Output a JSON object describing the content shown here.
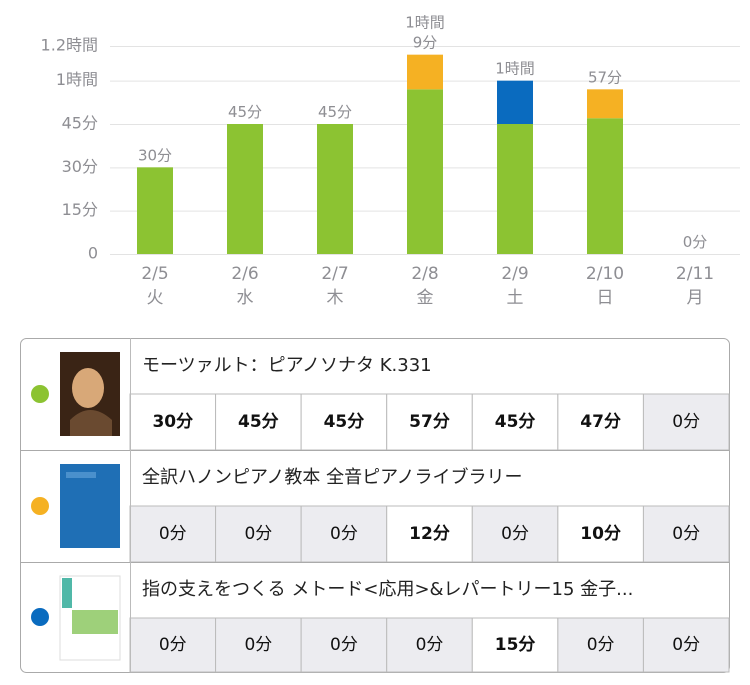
{
  "chart_data": {
    "type": "bar",
    "stacked": true,
    "categories": [
      "2/5",
      "2/6",
      "2/7",
      "2/8",
      "2/9",
      "2/10",
      "2/11"
    ],
    "weekdays": [
      "火",
      "水",
      "木",
      "金",
      "土",
      "日",
      "月"
    ],
    "series": [
      {
        "name": "モーツァルト：ピアノソナタ K.331",
        "color": "#8cc332",
        "values": [
          30,
          45,
          45,
          57,
          45,
          47,
          0
        ]
      },
      {
        "name": "全訳ハノンピアノ教本  全音ピアノライブラリー",
        "color": "#f5b123",
        "values": [
          0,
          0,
          0,
          12,
          0,
          10,
          0
        ]
      },
      {
        "name": "指の支えをつくる メトード<応用>&レパートリー15 金子...",
        "color": "#0a6bbf",
        "values": [
          0,
          0,
          0,
          0,
          15,
          0,
          0
        ]
      }
    ],
    "total_labels": [
      "30分",
      "45分",
      "45分",
      "1時間\n9分",
      "1時間",
      "57分",
      "0分"
    ],
    "ylim": [
      0,
      72
    ],
    "yticks": [
      0,
      {
        "value": 15,
        "label": "15分"
      },
      {
        "value": 30,
        "label": "30分"
      },
      {
        "value": 45,
        "label": "45分"
      },
      {
        "value": 60,
        "label": "1時間"
      },
      {
        "value": 72,
        "label": "1.2時間"
      }
    ],
    "grid": true
  },
  "table": {
    "rows": [
      [
        "30分",
        "45分",
        "45分",
        "57分",
        "45分",
        "47分",
        "0分"
      ],
      [
        "0分",
        "0分",
        "0分",
        "12分",
        "0分",
        "10分",
        "0分"
      ],
      [
        "0分",
        "0分",
        "0分",
        "0分",
        "15分",
        "0分",
        "0分"
      ]
    ]
  }
}
